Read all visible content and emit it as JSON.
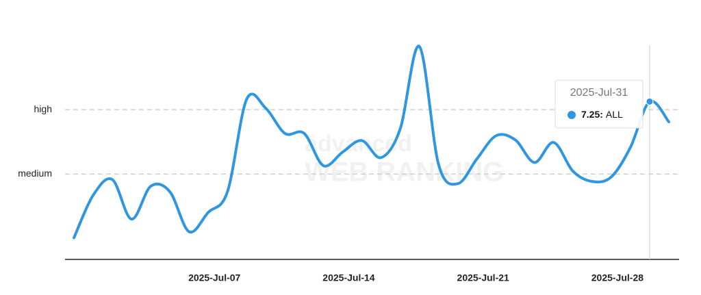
{
  "chart_data": {
    "type": "line",
    "categories": [
      null,
      null,
      null,
      null,
      null,
      null,
      null,
      "2025-Jul-07",
      null,
      null,
      null,
      null,
      null,
      null,
      "2025-Jul-14",
      null,
      null,
      null,
      null,
      null,
      null,
      "2025-Jul-21",
      null,
      null,
      null,
      null,
      null,
      null,
      "2025-Jul-28",
      null,
      null,
      null
    ],
    "series": [
      {
        "name": "ALL",
        "color": "#2f96e0",
        "values": [
          3.02,
          4.34,
          4.83,
          3.6,
          4.62,
          4.45,
          3.21,
          3.81,
          4.45,
          7.32,
          7.04,
          6.26,
          6.26,
          5.26,
          5.68,
          6.04,
          5.51,
          6.4,
          8.96,
          5.3,
          4.7,
          5.47,
          6.19,
          6.06,
          5.36,
          5.98,
          5.09,
          4.77,
          4.91,
          5.83,
          7.25,
          6.62
        ]
      }
    ],
    "ylim": [
      2.35,
      9
    ],
    "yticks": [
      {
        "value": 5,
        "label": "medium"
      },
      {
        "value": 7,
        "label": "high"
      }
    ],
    "grid": true,
    "watermark": [
      "advanced",
      "WEB RANKING"
    ],
    "tooltip": {
      "index": 30,
      "x_label": "2025-Jul-31",
      "value": 7.25,
      "value_label": "7.25:",
      "series": "ALL"
    }
  }
}
